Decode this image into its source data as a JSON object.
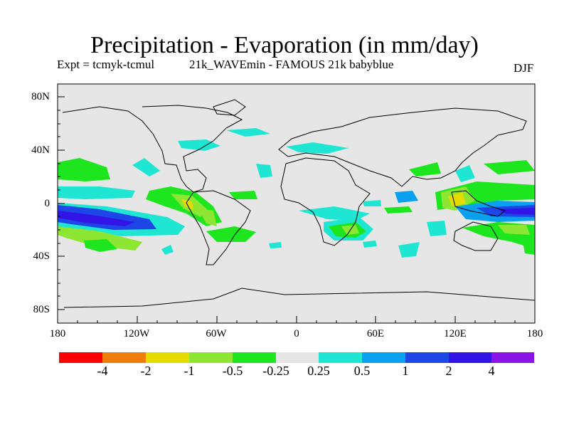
{
  "header": {
    "title": "Precipitation - Evaporation (in mm/day)",
    "experiment": "Expt = tcmyk-tcmul",
    "description": "21k_WAVEmin - FAMOUS 21k babyblue",
    "season": "DJF"
  },
  "axes": {
    "lat_labels": [
      "80N",
      "40N",
      "0",
      "40S",
      "80S"
    ],
    "lon_labels": [
      "180",
      "120W",
      "60W",
      "0",
      "60E",
      "120E",
      "180"
    ]
  },
  "colorbar": {
    "labels": [
      "-4",
      "-2",
      "-1",
      "-0.5",
      "-0.25",
      "0.25",
      "0.5",
      "1",
      "2",
      "4"
    ],
    "colors": [
      "#ff0000",
      "#f07d0a",
      "#e6dc00",
      "#8ce632",
      "#1ee61e",
      "#e6e6e6",
      "#1ee6d2",
      "#0aa0f0",
      "#1e46e6",
      "#3214e6",
      "#8c14e6"
    ]
  },
  "map": {
    "background_color": "#e6e6e6"
  }
}
